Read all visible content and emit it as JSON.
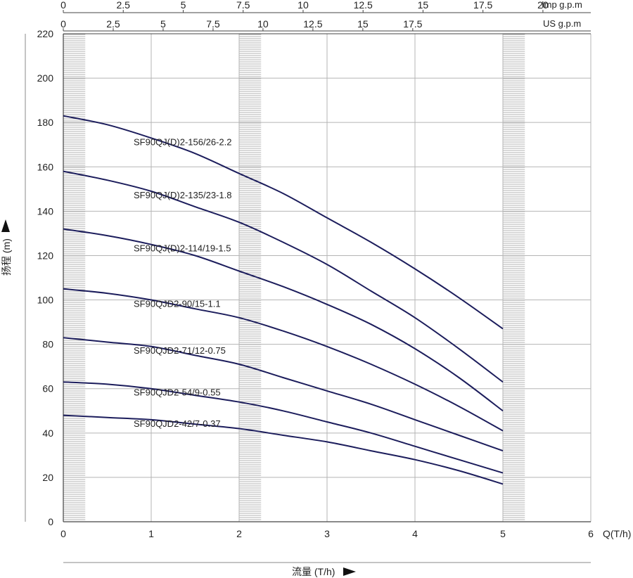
{
  "chart_data": {
    "type": "line",
    "xlabel": "流量 (T/h)",
    "x_axis_end_label": "Q(T/h)",
    "ylabel": "扬程 (m)",
    "xlim": [
      0,
      6
    ],
    "ylim": [
      0,
      220
    ],
    "x_ticks": [
      "0",
      "1",
      "2",
      "3",
      "4",
      "5",
      "6"
    ],
    "y_ticks": [
      "0",
      "20",
      "40",
      "60",
      "80",
      "100",
      "120",
      "140",
      "160",
      "180",
      "200",
      "220"
    ],
    "us_gpm": {
      "label": "US g.p.m",
      "ticks": [
        "0",
        "2.5",
        "5",
        "7.5",
        "10",
        "12.5",
        "15",
        "17.5"
      ]
    },
    "imp_gpm": {
      "label": "Imp g.p.m",
      "ticks": [
        "0",
        "2.5",
        "5",
        "7.5",
        "10",
        "12.5",
        "15",
        "17.5",
        "20"
      ]
    },
    "series": [
      {
        "name": "SF90QJ(D)2-156/26-2.2",
        "x": [
          0,
          0.5,
          1,
          1.5,
          2,
          2.5,
          3,
          3.5,
          4,
          4.5,
          5
        ],
        "y": [
          183,
          179,
          173,
          166,
          157,
          148,
          137,
          126,
          114,
          101,
          87
        ]
      },
      {
        "name": "SF90QJ(D)2-135/23-1.8",
        "x": [
          0,
          0.5,
          1,
          1.5,
          2,
          2.5,
          3,
          3.5,
          4,
          4.5,
          5
        ],
        "y": [
          158,
          154,
          149,
          142,
          135,
          126,
          116,
          104,
          92,
          78,
          63
        ]
      },
      {
        "name": "SF90QJ(D)2-114/19-1.5",
        "x": [
          0,
          0.5,
          1,
          1.5,
          2,
          2.5,
          3,
          3.5,
          4,
          4.5,
          5
        ],
        "y": [
          132,
          129,
          125,
          120,
          113,
          106,
          98,
          89,
          78,
          65,
          50
        ]
      },
      {
        "name": "SF90QJD2-90/15-1.1",
        "x": [
          0,
          0.5,
          1,
          1.5,
          2,
          2.5,
          3,
          3.5,
          4,
          4.5,
          5
        ],
        "y": [
          105,
          103,
          100,
          96,
          92,
          86,
          79,
          71,
          62,
          52,
          41
        ]
      },
      {
        "name": "SF90QJD2-71/12-0.75",
        "x": [
          0,
          0.5,
          1,
          1.5,
          2,
          2.5,
          3,
          3.5,
          4,
          4.5,
          5
        ],
        "y": [
          83,
          81,
          79,
          75,
          71,
          65,
          59,
          53,
          46,
          39,
          32
        ]
      },
      {
        "name": "SF90QJD2-54/9-0.55",
        "x": [
          0,
          0.5,
          1,
          1.5,
          2,
          2.5,
          3,
          3.5,
          4,
          4.5,
          5
        ],
        "y": [
          63,
          62,
          60,
          57,
          54,
          50,
          45,
          40,
          34,
          28,
          22
        ]
      },
      {
        "name": "SF90QJD2-42/7-0.37",
        "x": [
          0,
          0.5,
          1,
          1.5,
          2,
          2.5,
          3,
          3.5,
          4,
          4.5,
          5
        ],
        "y": [
          48,
          47,
          46,
          44,
          42,
          39,
          36,
          32,
          28,
          23,
          17
        ]
      }
    ],
    "shaded_bands_x": [
      [
        0,
        0.25
      ],
      [
        2,
        2.25
      ],
      [
        5,
        5.25
      ]
    ],
    "grid": true,
    "colors": {
      "curve": "#1c1d5c",
      "grid": "#b5b5b5",
      "axis": "#444444",
      "band": "#9a9a9a"
    }
  }
}
